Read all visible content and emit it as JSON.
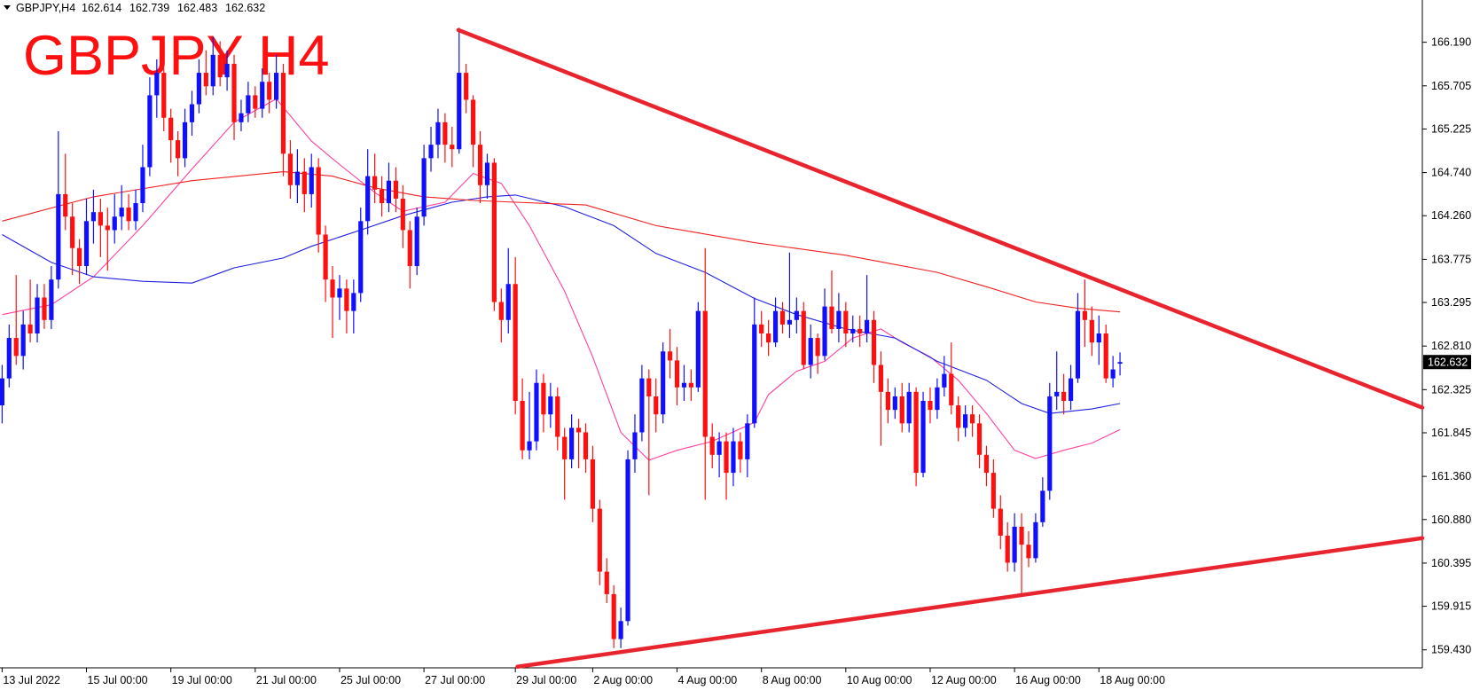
{
  "chart_data": {
    "type": "candlestick",
    "symbol": "GBPJPY,H4",
    "title": "GBPJPY H4",
    "up_color": "#1010ff",
    "down_color": "#ff1010",
    "ylim": [
      159.23,
      166.66
    ],
    "yticks": [
      {
        "value": 166.19,
        "label": "166.190"
      },
      165.705,
      165.225,
      {
        "value": 164.74,
        "label": "164.740"
      },
      {
        "value": 164.26,
        "label": "164.260"
      },
      163.775,
      163.295,
      {
        "value": 162.81,
        "label": "162.810"
      },
      162.325,
      161.845,
      {
        "value": 161.36,
        "label": "161.360"
      },
      {
        "value": 160.88,
        "label": "160.880"
      },
      160.395,
      159.915,
      {
        "value": 159.43,
        "label": "159.430"
      }
    ],
    "xlim": [
      -0.3,
      202
    ],
    "xticks": [
      {
        "value": 0,
        "label": "13 Jul 2022"
      },
      {
        "value": 12,
        "label": "15 Jul 00:00"
      },
      {
        "value": 24,
        "label": "19 Jul 00:00"
      },
      {
        "value": 36,
        "label": "21 Jul 00:00"
      },
      {
        "value": 48,
        "label": "25 Jul 00:00"
      },
      {
        "value": 60,
        "label": "27 Jul 00:00"
      },
      {
        "value": 73,
        "label": "29 Jul 00:00"
      },
      {
        "value": 84,
        "label": "2 Aug 00:00"
      },
      {
        "value": 96,
        "label": "4 Aug 00:00"
      },
      {
        "value": 108,
        "label": "8 Aug 00:00"
      },
      {
        "value": 120,
        "label": "10 Aug 00:00"
      },
      {
        "value": 132,
        "label": "12 Aug 00:00"
      },
      {
        "value": 144,
        "label": "16 Aug 00:00"
      },
      {
        "value": 156,
        "label": "18 Aug 00:00"
      }
    ],
    "ohlc": [
      [
        162.15,
        162.6,
        161.95,
        162.45
      ],
      [
        162.45,
        163.05,
        162.35,
        162.9
      ],
      [
        162.9,
        163.6,
        162.6,
        162.7
      ],
      [
        162.7,
        163.2,
        162.55,
        163.05
      ],
      [
        163.05,
        163.55,
        162.85,
        162.95
      ],
      [
        162.95,
        163.5,
        162.85,
        163.35
      ],
      [
        163.35,
        163.5,
        163.0,
        163.1
      ],
      [
        163.1,
        163.7,
        163.0,
        163.55
      ],
      [
        163.55,
        165.2,
        163.45,
        164.5
      ],
      [
        164.5,
        164.95,
        164.1,
        164.25
      ],
      [
        164.25,
        164.4,
        163.6,
        163.9
      ],
      [
        163.9,
        164.0,
        163.5,
        163.7
      ],
      [
        163.7,
        164.45,
        163.6,
        164.2
      ],
      [
        164.2,
        164.55,
        163.95,
        164.3
      ],
      [
        164.3,
        164.45,
        163.8,
        164.15
      ],
      [
        164.15,
        164.35,
        163.65,
        164.1
      ],
      [
        164.1,
        164.5,
        163.95,
        164.25
      ],
      [
        164.25,
        164.6,
        164.1,
        164.35
      ],
      [
        164.35,
        164.5,
        164.1,
        164.2
      ],
      [
        164.2,
        164.55,
        164.1,
        164.4
      ],
      [
        164.4,
        165.05,
        164.3,
        164.8
      ],
      [
        164.8,
        165.8,
        164.7,
        165.6
      ],
      [
        165.6,
        166.0,
        165.35,
        165.85
      ],
      [
        165.85,
        165.9,
        165.2,
        165.35
      ],
      [
        165.35,
        165.45,
        164.85,
        165.1
      ],
      [
        165.1,
        165.2,
        164.7,
        164.9
      ],
      [
        164.9,
        165.45,
        164.8,
        165.3
      ],
      [
        165.3,
        165.65,
        165.15,
        165.5
      ],
      [
        165.5,
        166.0,
        165.4,
        165.85
      ],
      [
        165.85,
        166.1,
        165.6,
        165.7
      ],
      [
        165.7,
        166.25,
        165.6,
        166.05
      ],
      [
        166.05,
        166.2,
        165.7,
        165.8
      ],
      [
        165.8,
        166.1,
        165.65,
        165.95
      ],
      [
        165.95,
        166.05,
        165.1,
        165.3
      ],
      [
        165.3,
        165.55,
        165.2,
        165.4
      ],
      [
        165.4,
        165.75,
        165.3,
        165.6
      ],
      [
        165.6,
        165.7,
        165.35,
        165.45
      ],
      [
        165.45,
        165.9,
        165.35,
        165.75
      ],
      [
        165.75,
        165.85,
        165.4,
        165.55
      ],
      [
        165.55,
        166.05,
        165.45,
        165.85
      ],
      [
        165.85,
        165.95,
        164.7,
        164.95
      ],
      [
        164.95,
        165.1,
        164.45,
        164.6
      ],
      [
        164.6,
        165.0,
        164.4,
        164.75
      ],
      [
        164.75,
        164.9,
        164.3,
        164.5
      ],
      [
        164.5,
        164.95,
        164.35,
        164.8
      ],
      [
        164.8,
        164.9,
        163.85,
        164.05
      ],
      [
        164.05,
        164.15,
        163.3,
        163.55
      ],
      [
        163.55,
        163.7,
        162.9,
        163.35
      ],
      [
        163.35,
        163.6,
        163.1,
        163.45
      ],
      [
        163.45,
        163.55,
        162.95,
        163.2
      ],
      [
        163.2,
        163.55,
        162.95,
        163.4
      ],
      [
        163.4,
        164.35,
        163.3,
        164.2
      ],
      [
        164.2,
        165.0,
        164.05,
        164.7
      ],
      [
        164.7,
        164.95,
        164.4,
        164.55
      ],
      [
        164.55,
        164.7,
        164.25,
        164.4
      ],
      [
        164.4,
        164.85,
        164.3,
        164.65
      ],
      [
        164.65,
        164.8,
        164.3,
        164.45
      ],
      [
        164.45,
        164.6,
        163.9,
        164.1
      ],
      [
        164.1,
        164.2,
        163.45,
        163.7
      ],
      [
        163.7,
        164.35,
        163.6,
        164.25
      ],
      [
        164.25,
        165.05,
        164.15,
        164.9
      ],
      [
        164.9,
        165.25,
        164.75,
        165.05
      ],
      [
        165.05,
        165.45,
        164.9,
        165.3
      ],
      [
        165.3,
        165.4,
        164.85,
        165.05
      ],
      [
        165.05,
        165.25,
        164.8,
        165.0
      ],
      [
        165.0,
        166.35,
        164.95,
        165.85
      ],
      [
        165.85,
        165.95,
        165.4,
        165.55
      ],
      [
        165.55,
        165.6,
        164.8,
        165.05
      ],
      [
        165.05,
        165.2,
        164.4,
        164.6
      ],
      [
        164.6,
        164.95,
        164.45,
        164.85
      ],
      [
        164.85,
        164.9,
        163.2,
        163.3
      ],
      [
        163.3,
        163.45,
        162.85,
        163.1
      ],
      [
        163.1,
        163.9,
        162.95,
        163.5
      ],
      [
        163.5,
        163.8,
        162.05,
        162.2
      ],
      [
        162.2,
        162.45,
        161.55,
        161.65
      ],
      [
        161.65,
        162.3,
        161.55,
        161.75
      ],
      [
        161.75,
        162.55,
        161.65,
        162.4
      ],
      [
        162.4,
        162.5,
        161.85,
        162.05
      ],
      [
        162.05,
        162.4,
        161.9,
        162.25
      ],
      [
        162.25,
        162.35,
        161.65,
        161.8
      ],
      [
        161.8,
        161.9,
        161.1,
        161.55
      ],
      [
        161.55,
        162.05,
        161.45,
        161.9
      ],
      [
        161.9,
        162.0,
        161.45,
        161.85
      ],
      [
        161.85,
        161.95,
        161.4,
        161.55
      ],
      [
        161.55,
        161.7,
        160.85,
        161.0
      ],
      [
        161.0,
        161.1,
        160.15,
        160.3
      ],
      [
        160.3,
        160.45,
        159.95,
        160.05
      ],
      [
        160.05,
        160.15,
        159.45,
        159.55
      ],
      [
        159.55,
        159.9,
        159.45,
        159.75
      ],
      [
        159.75,
        161.65,
        159.7,
        161.55
      ],
      [
        161.55,
        162.05,
        161.4,
        161.85
      ],
      [
        161.85,
        162.6,
        161.75,
        162.45
      ],
      [
        162.45,
        162.55,
        161.15,
        162.25
      ],
      [
        162.25,
        162.45,
        161.85,
        162.05
      ],
      [
        162.05,
        162.85,
        161.95,
        162.75
      ],
      [
        162.75,
        163.0,
        162.45,
        162.65
      ],
      [
        162.65,
        162.8,
        162.15,
        162.35
      ],
      [
        162.35,
        162.6,
        162.2,
        162.4
      ],
      [
        162.4,
        162.55,
        162.2,
        162.35
      ],
      [
        162.35,
        163.3,
        162.3,
        163.2
      ],
      [
        163.2,
        163.9,
        161.1,
        161.8
      ],
      [
        161.8,
        161.95,
        161.45,
        161.6
      ],
      [
        161.6,
        161.85,
        161.35,
        161.75
      ],
      [
        161.75,
        161.85,
        161.1,
        161.4
      ],
      [
        161.4,
        161.9,
        161.25,
        161.75
      ],
      [
        161.75,
        161.85,
        161.4,
        161.55
      ],
      [
        161.55,
        162.05,
        161.35,
        161.95
      ],
      [
        161.95,
        163.35,
        161.9,
        163.05
      ],
      [
        163.05,
        163.2,
        162.8,
        162.95
      ],
      [
        162.95,
        163.1,
        162.7,
        162.85
      ],
      [
        162.85,
        163.35,
        162.8,
        163.2
      ],
      [
        163.2,
        163.3,
        162.95,
        163.05
      ],
      [
        163.05,
        163.85,
        162.9,
        163.1
      ],
      [
        163.1,
        163.35,
        162.95,
        163.2
      ],
      [
        163.2,
        163.3,
        162.55,
        162.6
      ],
      [
        162.6,
        163.05,
        162.45,
        162.9
      ],
      [
        162.9,
        162.95,
        162.5,
        162.7
      ],
      [
        162.7,
        163.45,
        162.65,
        163.25
      ],
      [
        163.25,
        163.65,
        162.95,
        163.0
      ],
      [
        163.0,
        163.4,
        162.85,
        163.2
      ],
      [
        163.2,
        163.3,
        162.8,
        162.95
      ],
      [
        162.95,
        163.15,
        162.85,
        163.0
      ],
      [
        163.0,
        163.15,
        162.8,
        162.95
      ],
      [
        162.95,
        163.6,
        162.85,
        163.1
      ],
      [
        163.1,
        163.2,
        162.4,
        162.6
      ],
      [
        162.6,
        162.75,
        161.7,
        162.3
      ],
      [
        162.3,
        162.45,
        161.95,
        162.1
      ],
      [
        162.1,
        162.35,
        162.0,
        162.25
      ],
      [
        162.25,
        162.4,
        161.85,
        161.95
      ],
      [
        161.95,
        162.4,
        161.85,
        162.3
      ],
      [
        162.3,
        162.35,
        161.25,
        161.4
      ],
      [
        161.4,
        162.3,
        161.35,
        162.2
      ],
      [
        162.2,
        162.35,
        161.95,
        162.1
      ],
      [
        162.1,
        162.45,
        162.0,
        162.35
      ],
      [
        162.35,
        162.7,
        162.25,
        162.5
      ],
      [
        162.5,
        162.85,
        162.05,
        162.15
      ],
      [
        162.15,
        162.25,
        161.75,
        161.9
      ],
      [
        161.9,
        162.15,
        161.8,
        162.05
      ],
      [
        162.05,
        162.15,
        161.8,
        161.95
      ],
      [
        161.95,
        162.05,
        161.45,
        161.6
      ],
      [
        161.6,
        161.7,
        161.25,
        161.4
      ],
      [
        161.4,
        161.55,
        160.9,
        161.0
      ],
      [
        161.0,
        161.15,
        160.55,
        160.7
      ],
      [
        160.7,
        160.85,
        160.3,
        160.4
      ],
      [
        160.4,
        160.95,
        160.3,
        160.8
      ],
      [
        160.8,
        160.95,
        160.05,
        160.6
      ],
      [
        160.6,
        160.75,
        160.35,
        160.45
      ],
      [
        160.45,
        160.95,
        160.4,
        160.85
      ],
      [
        160.85,
        161.35,
        160.8,
        161.2
      ],
      [
        161.2,
        162.4,
        161.1,
        162.25
      ],
      [
        162.25,
        162.75,
        162.1,
        162.3
      ],
      [
        162.3,
        162.5,
        162.05,
        162.2
      ],
      [
        162.2,
        162.6,
        162.1,
        162.45
      ],
      [
        162.45,
        163.4,
        162.4,
        163.2
      ],
      [
        163.2,
        163.55,
        162.8,
        163.1
      ],
      [
        163.1,
        163.25,
        162.7,
        162.85
      ],
      [
        162.85,
        163.15,
        162.6,
        162.95
      ],
      [
        162.95,
        163.05,
        162.4,
        162.45
      ],
      [
        162.45,
        162.7,
        162.35,
        162.55
      ],
      [
        162.614,
        162.739,
        162.483,
        162.632
      ]
    ],
    "moving_averages": [
      {
        "color": "#ff3fa0",
        "x": [
          0,
          7,
          13,
          20,
          27,
          33,
          39,
          44,
          48,
          53,
          57,
          63,
          67,
          71,
          75,
          80,
          84,
          88,
          92,
          96,
          101,
          107,
          109,
          113,
          117,
          121,
          125,
          128,
          132,
          136,
          140,
          144,
          147,
          151,
          155,
          159
        ],
        "values": [
          163.16,
          163.27,
          163.58,
          164.15,
          164.78,
          165.3,
          165.56,
          165.09,
          164.83,
          164.52,
          164.31,
          164.41,
          164.73,
          164.62,
          164.15,
          163.42,
          162.69,
          161.85,
          161.54,
          161.65,
          161.75,
          161.96,
          162.27,
          162.53,
          162.64,
          162.9,
          163.0,
          162.85,
          162.69,
          162.43,
          162.06,
          161.65,
          161.56,
          161.65,
          161.73,
          161.88
        ]
      },
      {
        "color": "#2020e0",
        "x": [
          0,
          7,
          13,
          20,
          27,
          33,
          40,
          44,
          51,
          57,
          64,
          69,
          73,
          80,
          87,
          93,
          100,
          107,
          113,
          120,
          127,
          133,
          140,
          145,
          149,
          155,
          159
        ],
        "values": [
          164.05,
          163.74,
          163.58,
          163.53,
          163.51,
          163.68,
          163.79,
          163.92,
          164.1,
          164.26,
          164.41,
          164.47,
          164.49,
          164.36,
          164.15,
          163.84,
          163.63,
          163.34,
          163.16,
          163.0,
          162.9,
          162.64,
          162.43,
          162.17,
          162.06,
          162.11,
          162.17
        ]
      },
      {
        "color": "#f02020",
        "x": [
          0,
          13,
          27,
          40,
          47,
          53,
          60,
          67,
          73,
          83,
          93,
          107,
          120,
          133,
          140,
          147,
          153,
          159
        ],
        "values": [
          164.2,
          164.47,
          164.65,
          164.75,
          164.7,
          164.57,
          164.47,
          164.43,
          164.41,
          164.38,
          164.15,
          163.96,
          163.82,
          163.63,
          163.47,
          163.3,
          163.23,
          163.19
        ]
      }
    ],
    "trendlines": [
      {
        "color": "#e8252f",
        "x": [
          64.9,
          202
        ],
        "values": [
          166.326,
          162.125
        ]
      },
      {
        "color": "#e8252f",
        "x": [
          73.3,
          202
        ],
        "values": [
          159.242,
          160.673
        ]
      }
    ]
  }
}
